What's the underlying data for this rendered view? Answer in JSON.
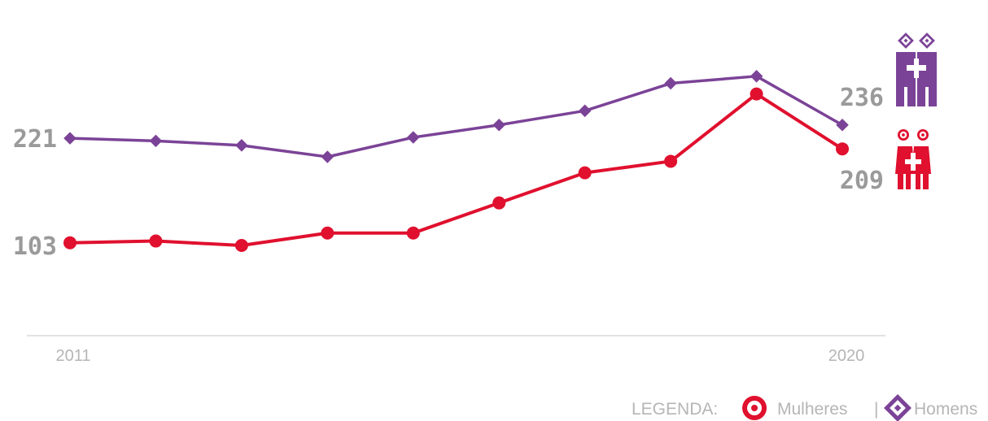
{
  "chart_data": {
    "type": "line",
    "x": [
      2011,
      2012,
      2013,
      2014,
      2015,
      2016,
      2017,
      2018,
      2019,
      2020
    ],
    "x_tick_labels": [
      "2011",
      "2020"
    ],
    "series": [
      {
        "name": "Homens",
        "color": "#7b4397",
        "marker": "diamond",
        "values": [
          221,
          218,
          213,
          200,
          222,
          236,
          252,
          283,
          291,
          236
        ]
      },
      {
        "name": "Mulheres",
        "color": "#e0102e",
        "marker": "circle",
        "values": [
          103,
          105,
          100,
          114,
          114,
          148,
          182,
          195,
          271,
          209
        ]
      }
    ],
    "start_labels": [
      "221",
      "103"
    ],
    "end_labels": [
      "236",
      "209"
    ],
    "legend": {
      "prefix": "LEGENDA:",
      "separator": "|",
      "placement": "bottom-right",
      "items": [
        {
          "label": "Mulheres",
          "icon": "circle-target-icon",
          "color": "#e0102e"
        },
        {
          "label": "Homens",
          "icon": "diamond-target-icon",
          "color": "#7b4397"
        }
      ]
    },
    "grid": false,
    "axis_color": "#d9d9d9",
    "label_color": "#9a9a9a"
  }
}
